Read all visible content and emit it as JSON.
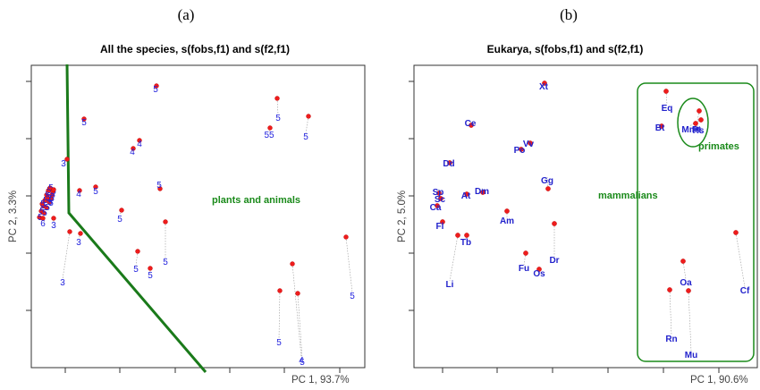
{
  "panels": [
    {
      "label": "(a)",
      "title": "All the species, s(fobs,f1) and s(f2,f1)",
      "xlabel": "PC 1,  93.7%",
      "ylabel": "PC 2,  3.3%",
      "annotation": "plants and animals"
    },
    {
      "label": "(b)",
      "title": "Eukarya, s(fobs,f1) and s(f2,f1)",
      "xlabel": "PC 1,  90.6%",
      "ylabel": "PC 2,  5.0%",
      "annotations": {
        "mammalians": "mammalians",
        "primates": "primates"
      }
    }
  ],
  "colors": {
    "points": "#ee1c1c",
    "labels": "#2222cc",
    "annotation": "#1a8a1a",
    "frame": "#333333"
  },
  "chart_data": [
    {
      "type": "scatter",
      "title": "All the species, s(fobs,f1) and s(f2,f1)",
      "xlabel": "PC 1,  93.7%",
      "ylabel": "PC 2,  3.3%",
      "grid": false,
      "note": "two projections per species (red point and blue group digit) joined by dotted segments",
      "labels": [
        "5",
        "5",
        "5",
        "55",
        "5",
        "4",
        "4",
        "3",
        "4",
        "5",
        "5",
        "5",
        "3",
        "6",
        "3",
        "5",
        "3",
        "5",
        "5",
        "5",
        "4",
        "5",
        "5",
        "5"
      ]
    },
    {
      "type": "scatter",
      "title": "Eukarya, s(fobs,f1) and s(f2,f1)",
      "xlabel": "PC 1,  90.6%",
      "ylabel": "PC 2,  5.0%",
      "grid": false,
      "labels": [
        "Xt",
        "Ce",
        "Vv",
        "Po",
        "Dd",
        "Gg",
        "Dm",
        "At",
        "Sp",
        "Sc",
        "Ca",
        "Am",
        "Fl",
        "Tb",
        "Dr",
        "Fu",
        "Os",
        "Li",
        "Eq",
        "Bt",
        "Pt",
        "Mm",
        "Hs",
        "Cf",
        "Oa",
        "Rn",
        "Mu"
      ]
    }
  ]
}
